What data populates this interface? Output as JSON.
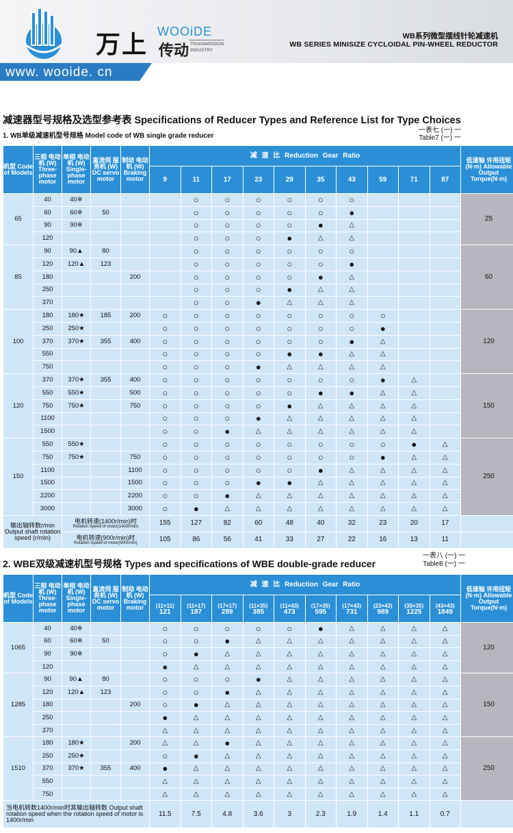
{
  "header": {
    "brand_cn": "万上",
    "brand_en": "WOOiDE",
    "brand_sub_cn": "传动",
    "brand_sub_en": "TRANSMISSION INDUSTRY",
    "title_cn": "WB系列微型摆线针轮减速机",
    "title_en": "WB SERIES MINISIZE CYCLOIDAL PIN-WHEEL REDUCTOR",
    "url": "www. wooide. cn",
    "accent": "#2a7cc2"
  },
  "section_title": "减速器型号规格及选型参考表   Specifications of Reducer Types and Reference List for Type Choices",
  "t1": {
    "subtitle": "1. WB单级减速机型号规格 Model code of WB single grade reducer",
    "ref": "一表七 (一) 一",
    "ref_en": "Table7 (一) 一",
    "h_model": "机型 Code of Models",
    "h_three": "三相 电动机 (W) Three- phase motor",
    "h_single": "单相 电动机 (W) Single- phase motor",
    "h_dc": "直流伺 服务机 (W) DC servo motor",
    "h_brake": "制动 电动机 (W) Braking motor",
    "h_ratio": "减    速    比      Reduction Gear Ratio",
    "h_torque": "低速轴 许用扭矩 (N·m) Allowable Output Torque(N·m)",
    "ratios": [
      "9",
      "11",
      "17",
      "23",
      "29",
      "35",
      "43",
      "59",
      "71",
      "87"
    ],
    "groups": [
      {
        "model": "65",
        "torque": "25",
        "rows": [
          {
            "three": "40",
            "single": "40※",
            "dc": "",
            "brake": "",
            "c": [
              "",
              "○",
              "○",
              "○",
              "○",
              "○",
              "○",
              "",
              "",
              ""
            ]
          },
          {
            "three": "60",
            "single": "60※",
            "dc": "50",
            "brake": "",
            "c": [
              "",
              "○",
              "○",
              "○",
              "○",
              "○",
              "●",
              "",
              "",
              ""
            ]
          },
          {
            "three": "90",
            "single": "90※",
            "dc": "",
            "brake": "",
            "c": [
              "",
              "○",
              "○",
              "○",
              "○",
              "●",
              "△",
              "",
              "",
              ""
            ]
          },
          {
            "three": "120",
            "single": "",
            "dc": "",
            "brake": "",
            "c": [
              "",
              "○",
              "○",
              "○",
              "●",
              "△",
              "△",
              "",
              "",
              ""
            ]
          }
        ]
      },
      {
        "model": "85",
        "torque": "60",
        "rows": [
          {
            "three": "90",
            "single": "90▲",
            "dc": "80",
            "brake": "",
            "c": [
              "",
              "○",
              "○",
              "○",
              "○",
              "○",
              "○",
              "",
              "",
              ""
            ]
          },
          {
            "three": "120",
            "single": "120▲",
            "dc": "123",
            "brake": "",
            "c": [
              "",
              "○",
              "○",
              "○",
              "○",
              "○",
              "●",
              "",
              "",
              ""
            ]
          },
          {
            "three": "180",
            "single": "",
            "dc": "",
            "brake": "200",
            "c": [
              "",
              "○",
              "○",
              "○",
              "○",
              "●",
              "△",
              "",
              "",
              ""
            ]
          },
          {
            "three": "250",
            "single": "",
            "dc": "",
            "brake": "",
            "c": [
              "",
              "○",
              "○",
              "○",
              "●",
              "△",
              "△",
              "",
              "",
              ""
            ]
          },
          {
            "three": "370",
            "single": "",
            "dc": "",
            "brake": "",
            "c": [
              "",
              "○",
              "○",
              "●",
              "△",
              "△",
              "△",
              "",
              "",
              ""
            ]
          }
        ]
      },
      {
        "model": "100",
        "torque": "120",
        "rows": [
          {
            "three": "180",
            "single": "180★",
            "dc": "185",
            "brake": "200",
            "c": [
              "○",
              "○",
              "○",
              "○",
              "○",
              "○",
              "○",
              "○",
              "",
              ""
            ]
          },
          {
            "three": "250",
            "single": "250★",
            "dc": "",
            "brake": "",
            "c": [
              "○",
              "○",
              "○",
              "○",
              "○",
              "○",
              "○",
              "●",
              "",
              ""
            ]
          },
          {
            "three": "370",
            "single": "370★",
            "dc": "355",
            "brake": "400",
            "c": [
              "○",
              "○",
              "○",
              "○",
              "○",
              "○",
              "●",
              "△",
              "",
              ""
            ]
          },
          {
            "three": "550",
            "single": "",
            "dc": "",
            "brake": "",
            "c": [
              "○",
              "○",
              "○",
              "○",
              "●",
              "●",
              "△",
              "△",
              "",
              ""
            ]
          },
          {
            "three": "750",
            "single": "",
            "dc": "",
            "brake": "",
            "c": [
              "○",
              "○",
              "○",
              "●",
              "△",
              "△",
              "△",
              "△",
              "",
              ""
            ]
          }
        ]
      },
      {
        "model": "120",
        "torque": "150",
        "rows": [
          {
            "three": "370",
            "single": "370★",
            "dc": "355",
            "brake": "400",
            "c": [
              "○",
              "○",
              "○",
              "○",
              "○",
              "○",
              "○",
              "●",
              "△",
              ""
            ]
          },
          {
            "three": "550",
            "single": "550★",
            "dc": "",
            "brake": "500",
            "c": [
              "○",
              "○",
              "○",
              "○",
              "○",
              "●",
              "●",
              "△",
              "△",
              ""
            ]
          },
          {
            "three": "750",
            "single": "750★",
            "dc": "",
            "brake": "750",
            "c": [
              "○",
              "○",
              "○",
              "○",
              "●",
              "△",
              "△",
              "△",
              "△",
              ""
            ]
          },
          {
            "three": "1100",
            "single": "",
            "dc": "",
            "brake": "",
            "c": [
              "○",
              "○",
              "○",
              "●",
              "△",
              "△",
              "△",
              "△",
              "△",
              ""
            ]
          },
          {
            "three": "1500",
            "single": "",
            "dc": "",
            "brake": "",
            "c": [
              "○",
              "○",
              "●",
              "△",
              "△",
              "△",
              "△",
              "△",
              "△",
              ""
            ]
          }
        ]
      },
      {
        "model": "150",
        "torque": "250",
        "rows": [
          {
            "three": "550",
            "single": "550★",
            "dc": "",
            "brake": "",
            "c": [
              "○",
              "○",
              "○",
              "○",
              "○",
              "○",
              "○",
              "○",
              "●",
              "△"
            ]
          },
          {
            "three": "750",
            "single": "750★",
            "dc": "",
            "brake": "750",
            "c": [
              "○",
              "○",
              "○",
              "○",
              "○",
              "○",
              "○",
              "●",
              "△",
              "△"
            ]
          },
          {
            "three": "1100",
            "single": "",
            "dc": "",
            "brake": "1100",
            "c": [
              "○",
              "○",
              "○",
              "○",
              "○",
              "●",
              "△",
              "△",
              "△",
              "△"
            ]
          },
          {
            "three": "1500",
            "single": "",
            "dc": "",
            "brake": "1500",
            "c": [
              "○",
              "○",
              "○",
              "●",
              "●",
              "△",
              "△",
              "△",
              "△",
              "△"
            ]
          },
          {
            "three": "2200",
            "single": "",
            "dc": "",
            "brake": "2200",
            "c": [
              "○",
              "○",
              "●",
              "△",
              "△",
              "△",
              "△",
              "△",
              "△",
              "△"
            ]
          },
          {
            "three": "3000",
            "single": "",
            "dc": "",
            "brake": "3000",
            "c": [
              "○",
              "●",
              "△",
              "△",
              "△",
              "△",
              "△",
              "△",
              "△",
              "△"
            ]
          }
        ]
      }
    ],
    "footer_left": "输出轴转数r/min Output shaft rotation speed (r/min)",
    "footer_1400": "电机转速(1400r/min)时",
    "footer_1400_en": "Rotation Speed of motor(1400r/min)",
    "footer_900": "电机转速(900r/min)时",
    "footer_900_en": "Rotation Speed of motor(900r/min)",
    "speed_1400": [
      "155",
      "127",
      "82",
      "60",
      "48",
      "40",
      "32",
      "23",
      "20",
      "17"
    ],
    "speed_900": [
      "105",
      "86",
      "56",
      "41",
      "33",
      "27",
      "22",
      "16",
      "13",
      "11"
    ]
  },
  "t2": {
    "subtitle": "2. WBE双级减速机型号规格 Types and specifications of WBE double-grade reducer",
    "ref": "一表八 (一) 一",
    "ref_en": "Table8 (一) 一",
    "h_model": "机型 Code of Models",
    "h_three": "三相 电动机 (W) Three- phase motor",
    "h_single": "单相 电动机 (W) Single- phase motor",
    "h_dc": "直流伺 服务机 (W) DC servo motor",
    "h_brake": "制动 电动机 (W) Braking motor",
    "h_ratio": "减    速    比      Reduction Gear Ratio",
    "h_torque": "低速轴 许用扭矩 (N·m) Allowable Output Torque(N·m)",
    "ratio_combo": [
      "(11×11)",
      "(11×17)",
      "(17×17)",
      "(11×35)",
      "(11×43)",
      "(17×35)",
      "(17×43)",
      "(23×43)",
      "(35×35)",
      "(43×43)"
    ],
    "ratios": [
      "121",
      "187",
      "289",
      "385",
      "473",
      "595",
      "731",
      "989",
      "1225",
      "1849"
    ],
    "groups": [
      {
        "model": "1065",
        "torque": "120",
        "rows": [
          {
            "three": "40",
            "single": "40※",
            "dc": "",
            "brake": "",
            "c": [
              "○",
              "○",
              "○",
              "○",
              "○",
              "●",
              "△",
              "△",
              "△",
              "△"
            ]
          },
          {
            "three": "60",
            "single": "60※",
            "dc": "50",
            "brake": "",
            "c": [
              "○",
              "○",
              "●",
              "△",
              "△",
              "△",
              "△",
              "△",
              "△",
              "△"
            ]
          },
          {
            "three": "90",
            "single": "90※",
            "dc": "",
            "brake": "",
            "c": [
              "○",
              "●",
              "△",
              "△",
              "△",
              "△",
              "△",
              "△",
              "△",
              "△"
            ]
          },
          {
            "three": "120",
            "single": "",
            "dc": "",
            "brake": "",
            "c": [
              "●",
              "△",
              "△",
              "△",
              "△",
              "△",
              "△",
              "△",
              "△",
              "△"
            ]
          }
        ]
      },
      {
        "model": "1285",
        "torque": "150",
        "rows": [
          {
            "three": "90",
            "single": "90▲",
            "dc": "80",
            "brake": "",
            "c": [
              "○",
              "○",
              "○",
              "●",
              "△",
              "△",
              "△",
              "△",
              "△",
              "△"
            ]
          },
          {
            "three": "120",
            "single": "120▲",
            "dc": "123",
            "brake": "",
            "c": [
              "○",
              "○",
              "●",
              "△",
              "△",
              "△",
              "△",
              "△",
              "△",
              "△"
            ]
          },
          {
            "three": "180",
            "single": "",
            "dc": "",
            "brake": "200",
            "c": [
              "○",
              "●",
              "△",
              "△",
              "△",
              "△",
              "△",
              "△",
              "△",
              "△"
            ]
          },
          {
            "three": "250",
            "single": "",
            "dc": "",
            "brake": "",
            "c": [
              "●",
              "△",
              "△",
              "△",
              "△",
              "△",
              "△",
              "△",
              "△",
              "△"
            ]
          },
          {
            "three": "370",
            "single": "",
            "dc": "",
            "brake": "",
            "c": [
              "△",
              "△",
              "△",
              "△",
              "△",
              "△",
              "△",
              "△",
              "△",
              "△"
            ]
          }
        ]
      },
      {
        "model": "1510",
        "torque": "250",
        "rows": [
          {
            "three": "180",
            "single": "180★",
            "dc": "",
            "brake": "200",
            "c": [
              "△",
              "△",
              "●",
              "△",
              "△",
              "△",
              "△",
              "△",
              "△",
              "△"
            ]
          },
          {
            "three": "250",
            "single": "250★",
            "dc": "",
            "brake": "",
            "c": [
              "○",
              "●",
              "△",
              "△",
              "△",
              "△",
              "△",
              "△",
              "△",
              "△"
            ]
          },
          {
            "three": "370",
            "single": "370★",
            "dc": "355",
            "brake": "400",
            "c": [
              "●",
              "△",
              "△",
              "△",
              "△",
              "△",
              "△",
              "△",
              "△",
              "△"
            ]
          },
          {
            "three": "550",
            "single": "",
            "dc": "",
            "brake": "",
            "c": [
              "△",
              "△",
              "△",
              "△",
              "△",
              "△",
              "△",
              "△",
              "△",
              "△"
            ]
          },
          {
            "three": "750",
            "single": "",
            "dc": "",
            "brake": "",
            "c": [
              "△",
              "△",
              "△",
              "△",
              "△",
              "△",
              "△",
              "△",
              "△",
              "△"
            ]
          }
        ]
      }
    ],
    "footer_left": "当电机转数1400r/min时其输出轴转数 Output shaft rotation speed when the rotation speed of motor is 1400r/min",
    "speed_1400": [
      "11.5",
      "7.5",
      "4.8",
      "3.6",
      "3",
      "2.3",
      "1.9",
      "1.4",
      "1.1",
      "0.7"
    ]
  }
}
